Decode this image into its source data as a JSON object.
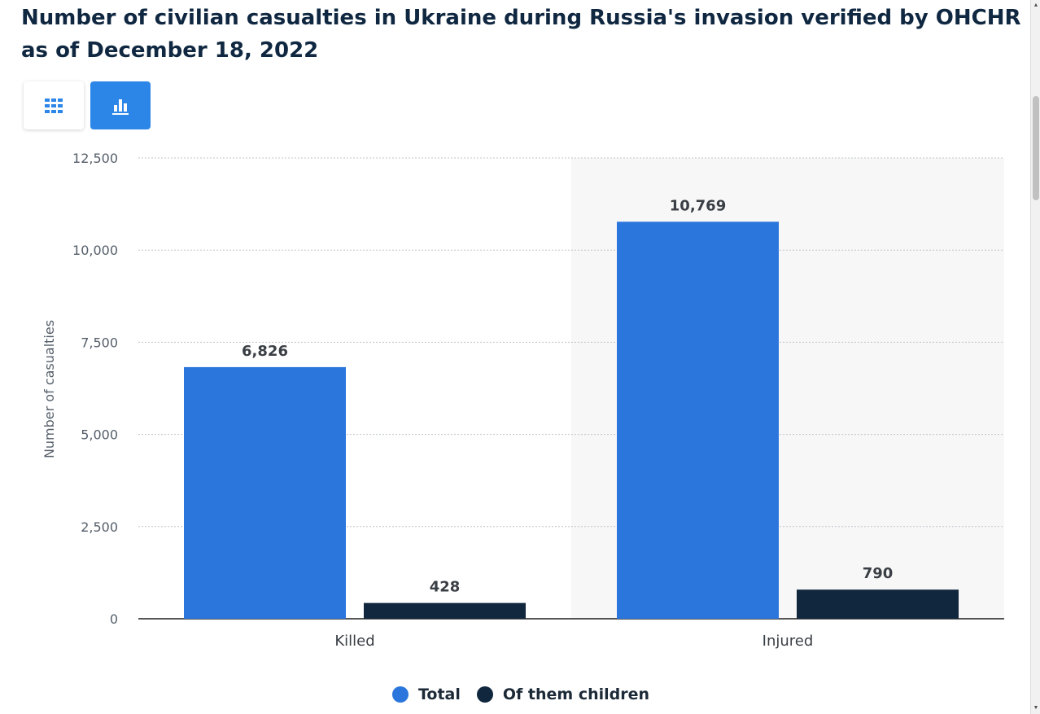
{
  "title": "Number of civilian casualties in Ukraine during Russia's invasion verified by OHCHR as of December 18, 2022",
  "view_toggle": {
    "table_icon": "grid-icon",
    "chart_icon": "bar-chart-icon",
    "active": "chart"
  },
  "colors": {
    "total": "#2b76dc",
    "children": "#11273d",
    "active_toggle": "#2c86e8",
    "highlight_band": "#f7f7f7"
  },
  "chart_data": {
    "type": "bar",
    "categories": [
      "Killed",
      "Injured"
    ],
    "series": [
      {
        "name": "Total",
        "values": [
          6826,
          10769
        ]
      },
      {
        "name": "Of them children",
        "values": [
          428,
          790
        ]
      }
    ],
    "data_labels": [
      [
        "6,826",
        "10,769"
      ],
      [
        "428",
        "790"
      ]
    ],
    "ylabel": "Number of casualties",
    "xlabel": "",
    "ylim": [
      0,
      12500
    ],
    "yticks": [
      0,
      2500,
      5000,
      7500,
      10000,
      12500
    ],
    "ytick_labels": [
      "0",
      "2,500",
      "5,000",
      "7,500",
      "10,000",
      "12,500"
    ],
    "grid": true,
    "legend_position": "bottom-center"
  }
}
